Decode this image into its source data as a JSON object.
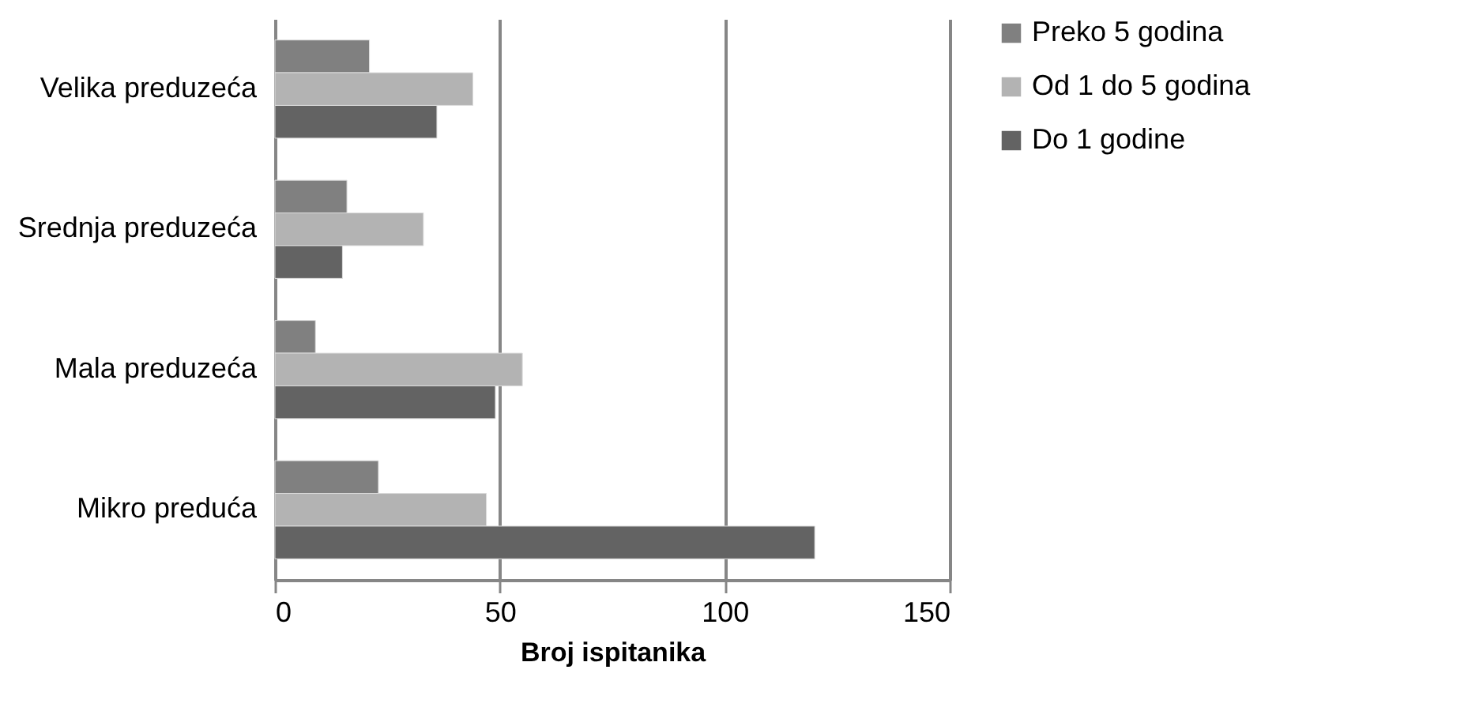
{
  "chart_data": {
    "type": "bar",
    "orientation": "horizontal",
    "xlabel": "Broj ispitanika",
    "categories": [
      "Velika preduzeća",
      "Srednja preduzeća",
      "Mala preduzeća",
      "Mikro preduća"
    ],
    "series": [
      {
        "name": "Preko 5 godina",
        "color": "#808080",
        "values": [
          21,
          16,
          9,
          23
        ]
      },
      {
        "name": "Od 1 do 5 godina",
        "color": "#b3b3b3",
        "values": [
          44,
          33,
          55,
          47
        ]
      },
      {
        "name": "Do 1 godine",
        "color": "#636363",
        "values": [
          36,
          15,
          49,
          120
        ]
      }
    ],
    "xlim": [
      0,
      150
    ],
    "xticks": [
      0,
      50,
      100,
      150
    ],
    "grid": "x",
    "legend": "right"
  }
}
